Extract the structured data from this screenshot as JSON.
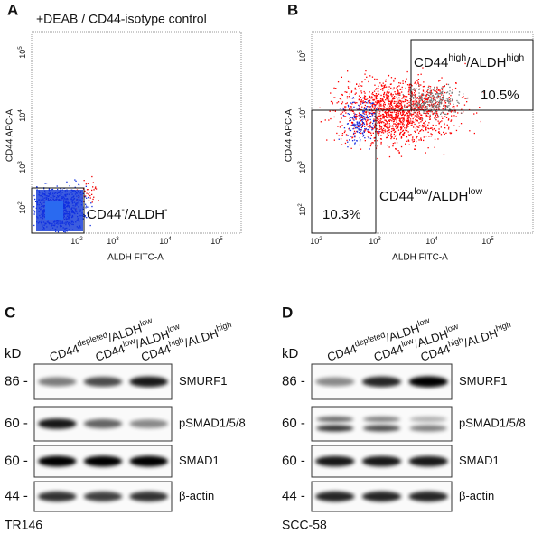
{
  "flow_panels": [
    {
      "letter": "A",
      "title": "+DEAB / CD44-isotype control",
      "x_label": "ALDH FITC-A",
      "y_label": "CD44 APC-A",
      "x_ticks": [
        {
          "base": "10",
          "exp": "2"
        },
        {
          "base": "10",
          "exp": "3"
        },
        {
          "base": "10",
          "exp": "4"
        },
        {
          "base": "10",
          "exp": "5"
        }
      ],
      "y_ticks": [
        {
          "base": "10",
          "exp": "2"
        },
        {
          "base": "10",
          "exp": "3"
        },
        {
          "base": "10",
          "exp": "4"
        },
        {
          "base": "10",
          "exp": "5"
        }
      ],
      "gates": [
        {
          "name": [
            [
              "CD44",
              "-"
            ],
            [
              "/ALDH",
              "-"
            ]
          ]
        }
      ]
    },
    {
      "letter": "B",
      "x_label": "ALDH FITC-A",
      "y_label": "CD44 APC-A",
      "x_ticks": [
        {
          "base": "10",
          "exp": "2"
        },
        {
          "base": "10",
          "exp": "3"
        },
        {
          "base": "10",
          "exp": "4"
        },
        {
          "base": "10",
          "exp": "5"
        }
      ],
      "y_ticks": [
        {
          "base": "10",
          "exp": "2"
        },
        {
          "base": "10",
          "exp": "3"
        },
        {
          "base": "10",
          "exp": "4"
        },
        {
          "base": "10",
          "exp": "5"
        }
      ],
      "gates": [
        {
          "name": [
            [
              "CD44",
              "high"
            ],
            [
              "/ALDH",
              "high"
            ]
          ],
          "percent": "10.5%"
        },
        {
          "name": [
            [
              "CD44",
              "low"
            ],
            [
              "/ALDH",
              "low"
            ]
          ],
          "percent": "10.3%"
        }
      ]
    }
  ],
  "blot_panels": [
    {
      "letter": "C",
      "unit": "kD",
      "cell_line": "TR146",
      "lanes": [
        [
          [
            "CD44",
            "depleted"
          ],
          [
            "/ALDH",
            "low"
          ]
        ],
        [
          [
            "CD44",
            "low"
          ],
          [
            "/ALDH",
            "low"
          ]
        ],
        [
          [
            "CD44",
            "high"
          ],
          [
            "/ALDH",
            "high"
          ]
        ]
      ],
      "rows": [
        {
          "marker": "86 -",
          "protein": "SMURF1"
        },
        {
          "marker": "60 -",
          "protein": "pSMAD1/5/8"
        },
        {
          "marker": "60 -",
          "protein": "SMAD1"
        },
        {
          "marker": "44 -",
          "protein": "β-actin"
        }
      ]
    },
    {
      "letter": "D",
      "unit": "kD",
      "cell_line": "SCC-58",
      "lanes": [
        [
          [
            "CD44",
            "depleted"
          ],
          [
            "/ALDH",
            "low"
          ]
        ],
        [
          [
            "CD44",
            "low"
          ],
          [
            "/ALDH",
            "low"
          ]
        ],
        [
          [
            "CD44",
            "high"
          ],
          [
            "/ALDH",
            "high"
          ]
        ]
      ],
      "rows": [
        {
          "marker": "86 -",
          "protein": "SMURF1"
        },
        {
          "marker": "60 -",
          "protein": "pSMAD1/5/8"
        },
        {
          "marker": "60 -",
          "protein": "SMAD1"
        },
        {
          "marker": "44 -",
          "protein": "β-actin"
        }
      ]
    }
  ]
}
